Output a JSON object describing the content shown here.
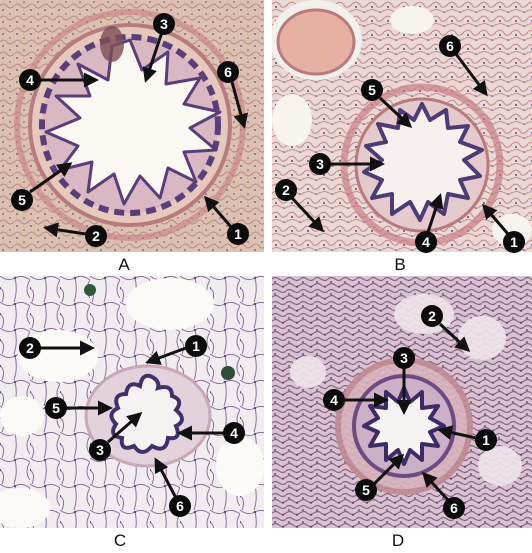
{
  "panels": [
    {
      "letter": "A",
      "callouts": [
        "1",
        "2",
        "3",
        "4",
        "5",
        "6"
      ]
    },
    {
      "letter": "B",
      "callouts": [
        "1",
        "2",
        "3",
        "4",
        "5",
        "6"
      ]
    },
    {
      "letter": "C",
      "callouts": [
        "1",
        "2",
        "3",
        "4",
        "5",
        "6"
      ]
    },
    {
      "letter": "D",
      "callouts": [
        "1",
        "2",
        "3",
        "4",
        "5",
        "6"
      ]
    }
  ],
  "colors": {
    "panel_a_tissue": "#dcc0b0",
    "panel_b_tissue": "#ead8d5",
    "panel_c_tissue": "#f1ecef",
    "panel_d_tissue": "#d8c4d0",
    "lumen": "#fbf7f2",
    "epithelium": "#5a3e7a",
    "smooth_muscle": "#c97f83",
    "blood_vessel": "#e6b0a3",
    "marker_fill": "#0b0b0b",
    "arrow": "#111111"
  }
}
